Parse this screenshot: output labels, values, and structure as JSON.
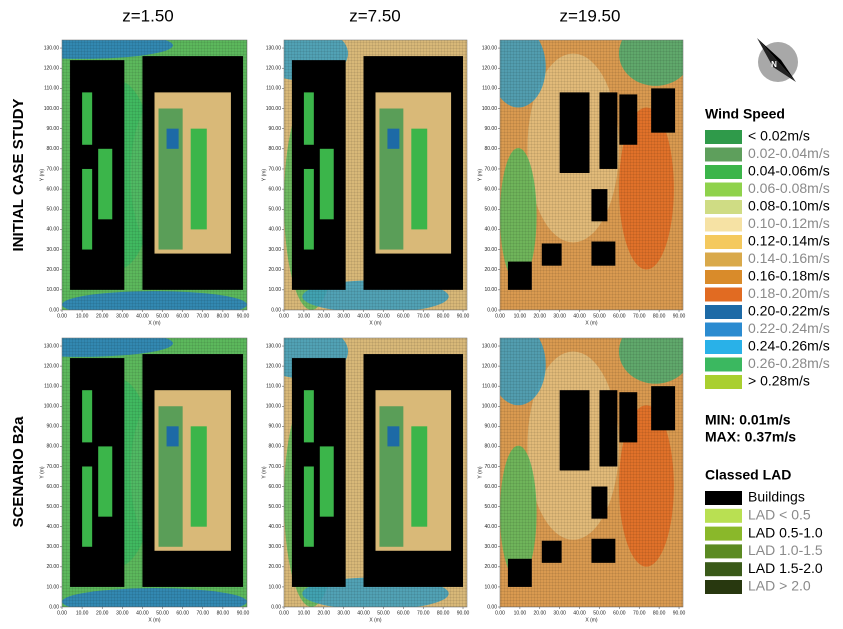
{
  "columns": [
    "z=1.50",
    "z=7.50",
    "z=19.50"
  ],
  "rows": [
    "INITIAL CASE STUDY",
    "SCENARIO B2a"
  ],
  "axes": {
    "xlabel": "X (m)",
    "ylabel": "Y (m)",
    "xlim": [
      0,
      92
    ],
    "ylim": [
      0,
      134
    ],
    "xticks": [
      {
        "value": 0,
        "label": "0.00"
      },
      {
        "value": 10,
        "label": "10.00"
      },
      {
        "value": 20,
        "label": "20.00"
      },
      {
        "value": 30,
        "label": "30.00"
      },
      {
        "value": 40,
        "label": "40.00"
      },
      {
        "value": 50,
        "label": "50.00"
      },
      {
        "value": 60,
        "label": "60.00"
      },
      {
        "value": 70,
        "label": "70.00"
      },
      {
        "value": 80,
        "label": "80.00"
      },
      {
        "value": 90,
        "label": "90.00"
      }
    ],
    "yticks": [
      {
        "value": 0,
        "label": "0.00"
      },
      {
        "value": 10,
        "label": "10.00"
      },
      {
        "value": 20,
        "label": "20.00"
      },
      {
        "value": 30,
        "label": "30.00"
      },
      {
        "value": 40,
        "label": "40.00"
      },
      {
        "value": 50,
        "label": "50.00"
      },
      {
        "value": 60,
        "label": "60.00"
      },
      {
        "value": 70,
        "label": "70.00"
      },
      {
        "value": 80,
        "label": "80.00"
      },
      {
        "value": 90,
        "label": "90.00"
      },
      {
        "value": 100,
        "label": "100.00"
      },
      {
        "value": 110,
        "label": "110.00"
      },
      {
        "value": 120,
        "label": "120.00"
      },
      {
        "value": 130,
        "label": "130.00"
      }
    ]
  },
  "compass": "N",
  "wind_speed": {
    "title": "Wind Speed",
    "items": [
      {
        "label": "< 0.02m/s",
        "color": "#2f9a4a"
      },
      {
        "label": "0.02-0.04m/s",
        "color": "#5e9f5c"
      },
      {
        "label": "0.04-0.06m/s",
        "color": "#3bb54a"
      },
      {
        "label": "0.06-0.08m/s",
        "color": "#8fd24c"
      },
      {
        "label": "0.08-0.10m/s",
        "color": "#cfdc84"
      },
      {
        "label": "0.10-0.12m/s",
        "color": "#f6e2a4"
      },
      {
        "label": "0.12-0.14m/s",
        "color": "#f4c95e"
      },
      {
        "label": "0.14-0.16m/s",
        "color": "#d9a94a"
      },
      {
        "label": "0.16-0.18m/s",
        "color": "#d98b2a"
      },
      {
        "label": "0.18-0.20m/s",
        "color": "#e16b22"
      },
      {
        "label": "0.20-0.22m/s",
        "color": "#1d6aa6"
      },
      {
        "label": "0.22-0.24m/s",
        "color": "#2b8bd0"
      },
      {
        "label": "0.24-0.26m/s",
        "color": "#29b1e8"
      },
      {
        "label": "0.26-0.28m/s",
        "color": "#3bb860"
      },
      {
        "label": "> 0.28m/s",
        "color": "#a9cf2f"
      }
    ]
  },
  "min": "MIN: 0.01m/s",
  "max": "MAX: 0.37m/s",
  "lad": {
    "title": "Classed LAD",
    "items": [
      {
        "label": "Buildings",
        "color": "#000000"
      },
      {
        "label": "LAD < 0.5",
        "color": "#b9e052"
      },
      {
        "label": "LAD 0.5-1.0",
        "color": "#8ab82a"
      },
      {
        "label": "LAD 1.0-1.5",
        "color": "#5b8a22"
      },
      {
        "label": "LAD 1.5-2.0",
        "color": "#3a5a19"
      },
      {
        "label": "LAD > 2.0",
        "color": "#28380f"
      }
    ]
  }
}
